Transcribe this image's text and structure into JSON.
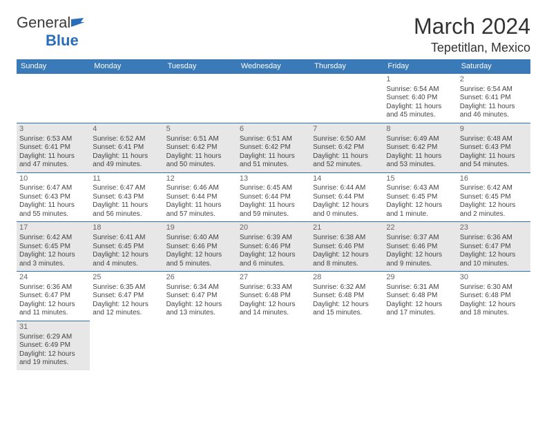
{
  "logo": {
    "general": "General",
    "blue": "Blue"
  },
  "title": "March 2024",
  "subtitle": "Tepetitlan, Mexico",
  "day_headers": [
    "Sunday",
    "Monday",
    "Tuesday",
    "Wednesday",
    "Thursday",
    "Friday",
    "Saturday"
  ],
  "colors": {
    "header_bg": "#3a7ab8",
    "border": "#2a6db8",
    "alt_row": "#e7e7e7",
    "text": "#444444"
  },
  "grid_start_weekday": 5,
  "days": [
    {
      "n": 1,
      "sr": "6:54 AM",
      "ss": "6:40 PM",
      "dl": "11 hours and 45 minutes."
    },
    {
      "n": 2,
      "sr": "6:54 AM",
      "ss": "6:41 PM",
      "dl": "11 hours and 46 minutes."
    },
    {
      "n": 3,
      "sr": "6:53 AM",
      "ss": "6:41 PM",
      "dl": "11 hours and 47 minutes."
    },
    {
      "n": 4,
      "sr": "6:52 AM",
      "ss": "6:41 PM",
      "dl": "11 hours and 49 minutes."
    },
    {
      "n": 5,
      "sr": "6:51 AM",
      "ss": "6:42 PM",
      "dl": "11 hours and 50 minutes."
    },
    {
      "n": 6,
      "sr": "6:51 AM",
      "ss": "6:42 PM",
      "dl": "11 hours and 51 minutes."
    },
    {
      "n": 7,
      "sr": "6:50 AM",
      "ss": "6:42 PM",
      "dl": "11 hours and 52 minutes."
    },
    {
      "n": 8,
      "sr": "6:49 AM",
      "ss": "6:42 PM",
      "dl": "11 hours and 53 minutes."
    },
    {
      "n": 9,
      "sr": "6:48 AM",
      "ss": "6:43 PM",
      "dl": "11 hours and 54 minutes."
    },
    {
      "n": 10,
      "sr": "6:47 AM",
      "ss": "6:43 PM",
      "dl": "11 hours and 55 minutes."
    },
    {
      "n": 11,
      "sr": "6:47 AM",
      "ss": "6:43 PM",
      "dl": "11 hours and 56 minutes."
    },
    {
      "n": 12,
      "sr": "6:46 AM",
      "ss": "6:44 PM",
      "dl": "11 hours and 57 minutes."
    },
    {
      "n": 13,
      "sr": "6:45 AM",
      "ss": "6:44 PM",
      "dl": "11 hours and 59 minutes."
    },
    {
      "n": 14,
      "sr": "6:44 AM",
      "ss": "6:44 PM",
      "dl": "12 hours and 0 minutes."
    },
    {
      "n": 15,
      "sr": "6:43 AM",
      "ss": "6:45 PM",
      "dl": "12 hours and 1 minute."
    },
    {
      "n": 16,
      "sr": "6:42 AM",
      "ss": "6:45 PM",
      "dl": "12 hours and 2 minutes."
    },
    {
      "n": 17,
      "sr": "6:42 AM",
      "ss": "6:45 PM",
      "dl": "12 hours and 3 minutes."
    },
    {
      "n": 18,
      "sr": "6:41 AM",
      "ss": "6:45 PM",
      "dl": "12 hours and 4 minutes."
    },
    {
      "n": 19,
      "sr": "6:40 AM",
      "ss": "6:46 PM",
      "dl": "12 hours and 5 minutes."
    },
    {
      "n": 20,
      "sr": "6:39 AM",
      "ss": "6:46 PM",
      "dl": "12 hours and 6 minutes."
    },
    {
      "n": 21,
      "sr": "6:38 AM",
      "ss": "6:46 PM",
      "dl": "12 hours and 8 minutes."
    },
    {
      "n": 22,
      "sr": "6:37 AM",
      "ss": "6:46 PM",
      "dl": "12 hours and 9 minutes."
    },
    {
      "n": 23,
      "sr": "6:36 AM",
      "ss": "6:47 PM",
      "dl": "12 hours and 10 minutes."
    },
    {
      "n": 24,
      "sr": "6:36 AM",
      "ss": "6:47 PM",
      "dl": "12 hours and 11 minutes."
    },
    {
      "n": 25,
      "sr": "6:35 AM",
      "ss": "6:47 PM",
      "dl": "12 hours and 12 minutes."
    },
    {
      "n": 26,
      "sr": "6:34 AM",
      "ss": "6:47 PM",
      "dl": "12 hours and 13 minutes."
    },
    {
      "n": 27,
      "sr": "6:33 AM",
      "ss": "6:48 PM",
      "dl": "12 hours and 14 minutes."
    },
    {
      "n": 28,
      "sr": "6:32 AM",
      "ss": "6:48 PM",
      "dl": "12 hours and 15 minutes."
    },
    {
      "n": 29,
      "sr": "6:31 AM",
      "ss": "6:48 PM",
      "dl": "12 hours and 17 minutes."
    },
    {
      "n": 30,
      "sr": "6:30 AM",
      "ss": "6:48 PM",
      "dl": "12 hours and 18 minutes."
    },
    {
      "n": 31,
      "sr": "6:29 AM",
      "ss": "6:49 PM",
      "dl": "12 hours and 19 minutes."
    }
  ],
  "labels": {
    "sunrise": "Sunrise: ",
    "sunset": "Sunset: ",
    "daylight": "Daylight: "
  }
}
